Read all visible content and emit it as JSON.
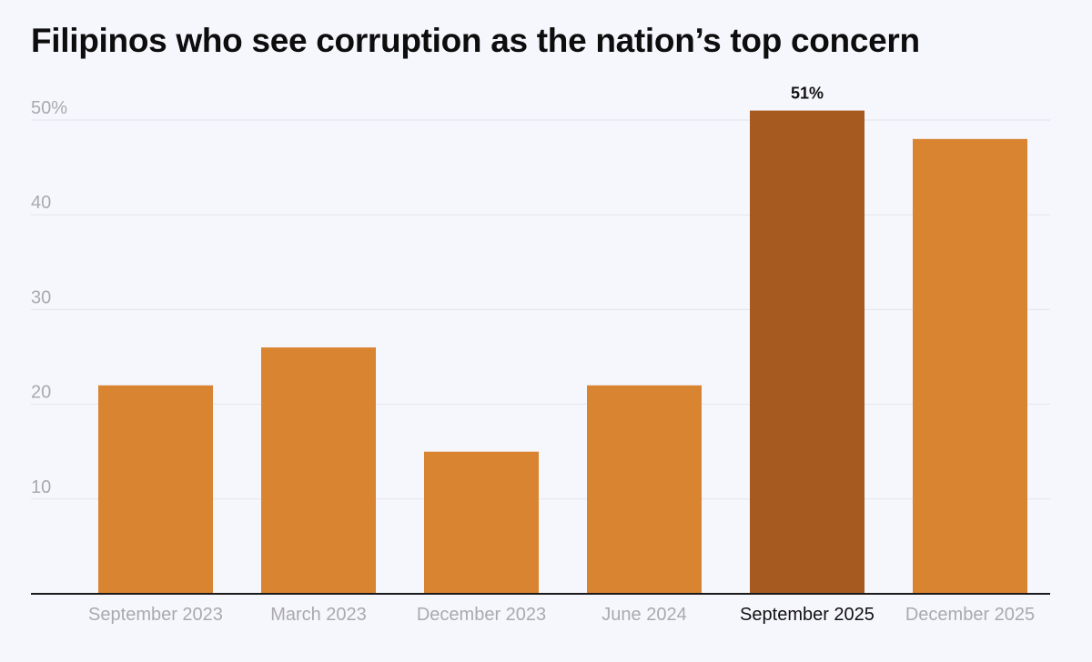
{
  "chart_data": {
    "type": "bar",
    "title": "Filipinos who see corruption as the nation’s top concern",
    "categories": [
      "September 2023",
      "March 2023",
      "December 2023",
      "June 2024",
      "September 2025",
      "December 2025"
    ],
    "values": [
      22,
      26,
      15,
      22,
      51,
      48
    ],
    "ylim": [
      0,
      50
    ],
    "yticks": [
      10,
      20,
      30,
      40,
      50
    ],
    "ytick_labels": [
      "10",
      "20",
      "30",
      "40",
      "50%"
    ],
    "data_labels": [
      "",
      "",
      "",
      "",
      "51%",
      ""
    ],
    "highlight_index": 4,
    "grid": true,
    "xlabel": "",
    "ylabel": "",
    "colors": {
      "bar": "#d88431",
      "highlight": "#a65a20"
    }
  }
}
